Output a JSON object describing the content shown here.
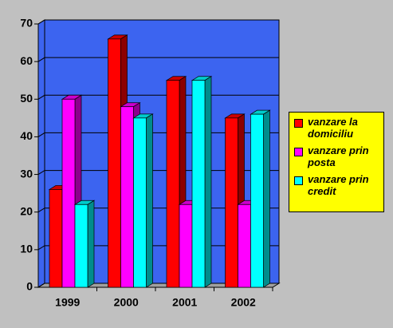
{
  "chart_data": {
    "type": "bar3d",
    "categories": [
      "1999",
      "2000",
      "2001",
      "2002"
    ],
    "series": [
      {
        "name": "vanzare la domiciliu",
        "color": "#ff0000",
        "values": [
          26,
          66,
          55,
          45
        ]
      },
      {
        "name": "vanzare prin posta",
        "color": "#ff00ff",
        "values": [
          50,
          48,
          22,
          22
        ]
      },
      {
        "name": "vanzare prin credit",
        "color": "#00ffff",
        "values": [
          22,
          45,
          55,
          46
        ]
      }
    ],
    "ylim": [
      0,
      70
    ],
    "yticks": [
      0,
      10,
      20,
      30,
      40,
      50,
      60,
      70
    ],
    "grid": true,
    "wall_color": "#3c64f0",
    "legend": "right",
    "legend_color": "#ffff00"
  }
}
